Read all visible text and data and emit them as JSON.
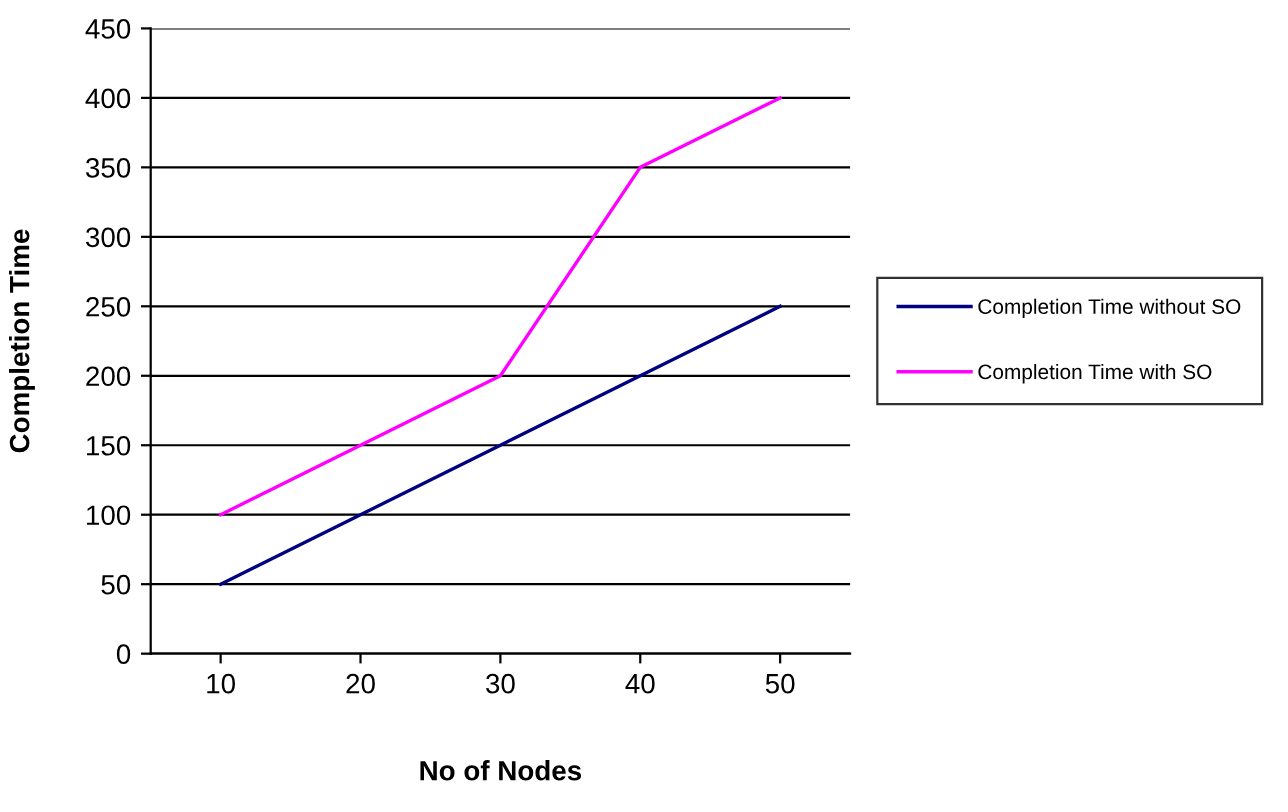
{
  "chart_data": {
    "type": "line",
    "xlabel": "No of Nodes",
    "ylabel": "Completion Time",
    "categories": [
      "10",
      "20",
      "30",
      "40",
      "50"
    ],
    "series": [
      {
        "name": "Completion Time without SO",
        "color": "#000080",
        "values": [
          50,
          100,
          150,
          200,
          250
        ]
      },
      {
        "name": "Completion Time with SO",
        "color": "#ff00ff",
        "values": [
          100,
          150,
          200,
          350,
          400
        ]
      }
    ],
    "ylim": [
      0,
      450
    ],
    "yticks": [
      0,
      50,
      100,
      150,
      200,
      250,
      300,
      350,
      400,
      450
    ],
    "grid": "y",
    "legend": "right",
    "marker": "none",
    "line_style": "solid"
  }
}
